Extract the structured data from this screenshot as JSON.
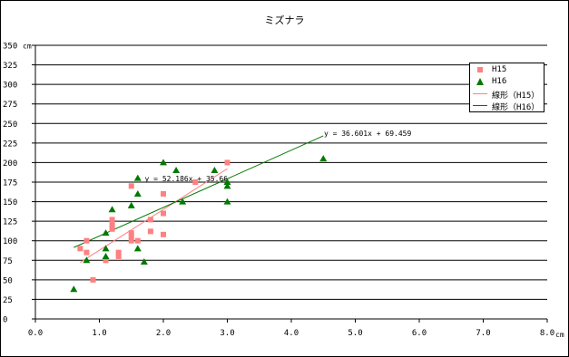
{
  "chart_data": {
    "type": "scatter",
    "title": "ミズナラ",
    "x_unit": "cm",
    "y_unit": "cm",
    "xlim": [
      0,
      8
    ],
    "ylim": [
      0,
      350
    ],
    "x_ticks": [
      "0.0",
      "1.0",
      "2.0",
      "3.0",
      "4.0",
      "5.0",
      "6.0",
      "7.0",
      "8.0"
    ],
    "y_ticks": [
      "0",
      "25",
      "50",
      "75",
      "100",
      "125",
      "150",
      "175",
      "200",
      "225",
      "250",
      "275",
      "300",
      "325",
      "350"
    ],
    "grid": "horizontal",
    "legend_position": "top-right",
    "series": [
      {
        "name": "H15",
        "marker": "square",
        "color": "#ff8080",
        "points": [
          [
            0.7,
            90
          ],
          [
            0.8,
            85
          ],
          [
            0.8,
            100
          ],
          [
            0.9,
            50
          ],
          [
            1.1,
            75
          ],
          [
            1.2,
            115
          ],
          [
            1.2,
            120
          ],
          [
            1.2,
            127
          ],
          [
            1.3,
            80
          ],
          [
            1.3,
            85
          ],
          [
            1.5,
            100
          ],
          [
            1.5,
            105
          ],
          [
            1.5,
            110
          ],
          [
            1.5,
            170
          ],
          [
            1.6,
            100
          ],
          [
            1.8,
            112
          ],
          [
            1.8,
            127
          ],
          [
            2.0,
            108
          ],
          [
            2.0,
            135
          ],
          [
            2.0,
            160
          ],
          [
            2.5,
            175
          ],
          [
            3.0,
            200
          ]
        ]
      },
      {
        "name": "H16",
        "marker": "triangle",
        "color": "#007a00",
        "points": [
          [
            0.6,
            38
          ],
          [
            0.8,
            75
          ],
          [
            1.1,
            80
          ],
          [
            1.1,
            90
          ],
          [
            1.1,
            110
          ],
          [
            1.2,
            140
          ],
          [
            1.5,
            145
          ],
          [
            1.6,
            90
          ],
          [
            1.6,
            160
          ],
          [
            1.6,
            180
          ],
          [
            1.7,
            73
          ],
          [
            2.0,
            200
          ],
          [
            2.2,
            190
          ],
          [
            2.3,
            150
          ],
          [
            2.8,
            190
          ],
          [
            3.0,
            150
          ],
          [
            3.0,
            170
          ],
          [
            3.0,
            175
          ],
          [
            4.5,
            205
          ]
        ]
      }
    ],
    "trendlines": [
      {
        "name": "線形（H15）",
        "color": "#ff8080",
        "slope": 52.186,
        "intercept": 35.66,
        "x_range": [
          0.7,
          3.0
        ],
        "equation": "y = 52.186x + 35.66"
      },
      {
        "name": "線形（H16）",
        "color": "#007a00",
        "slope": 36.601,
        "intercept": 69.459,
        "x_range": [
          0.6,
          4.5
        ],
        "equation": "y = 36.601x + 69.459"
      }
    ],
    "legend": [
      "H15",
      "H16",
      "線形（H15）",
      "線形（H16）"
    ]
  }
}
